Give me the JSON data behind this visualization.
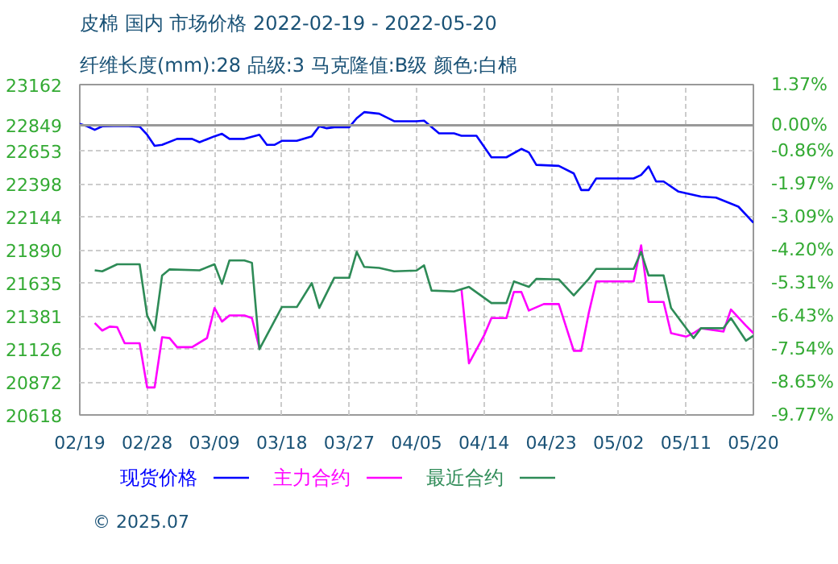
{
  "chart_data": {
    "type": "line",
    "title": "皮棉 国内 市场价格 2022-02-19 - 2022-05-20",
    "subtitle": "纤维长度(mm):28 品级:3 马克隆值:B级 颜色:白棉",
    "xlim": [
      "2022-02-19",
      "2022-05-20"
    ],
    "xticks": [
      {
        "value": "2022-02-19",
        "label": "02/19"
      },
      {
        "value": "2022-02-28",
        "label": "02/28"
      },
      {
        "value": "2022-03-09",
        "label": "03/09"
      },
      {
        "value": "2022-03-18",
        "label": "03/18"
      },
      {
        "value": "2022-03-27",
        "label": "03/27"
      },
      {
        "value": "2022-04-05",
        "label": "04/05"
      },
      {
        "value": "2022-04-14",
        "label": "04/14"
      },
      {
        "value": "2022-04-23",
        "label": "04/23"
      },
      {
        "value": "2022-05-02",
        "label": "05/02"
      },
      {
        "value": "2022-05-11",
        "label": "05/11"
      },
      {
        "value": "2022-05-20",
        "label": "05/20"
      }
    ],
    "ylim": [
      20618,
      23162
    ],
    "yticks": [
      20618,
      20872,
      21126,
      21381,
      21635,
      21890,
      22144,
      22398,
      22653,
      22849,
      23162
    ],
    "y2lim": [
      -9.77,
      1.37
    ],
    "y2ticks": [
      {
        "value": -9.77,
        "label": "-9.77%"
      },
      {
        "value": -8.65,
        "label": "-8.65%"
      },
      {
        "value": -7.54,
        "label": "-7.54%"
      },
      {
        "value": -6.43,
        "label": "-6.43%"
      },
      {
        "value": -5.31,
        "label": "-5.31%"
      },
      {
        "value": -4.2,
        "label": "-4.20%"
      },
      {
        "value": -3.09,
        "label": "-3.09%"
      },
      {
        "value": -1.97,
        "label": "-1.97%"
      },
      {
        "value": -0.86,
        "label": "-0.86%"
      },
      {
        "value": 0,
        "label": "0.00%"
      },
      {
        "value": 1.37,
        "label": "1.37%"
      }
    ],
    "ref_lines": [
      {
        "axis": "y2",
        "value": 0,
        "color": "#999999",
        "line_style": "solid"
      }
    ],
    "grid": true,
    "legend": "bottom",
    "line_style": "solid",
    "annotations": [
      "© 2025.07"
    ],
    "series": [
      {
        "name": "现货价格",
        "color": "#0000ff",
        "x": [
          "2022-02-19",
          "2022-02-20",
          "2022-02-21",
          "2022-02-22",
          "2022-02-25",
          "2022-02-27",
          "2022-02-28",
          "2022-03-01",
          "2022-03-02",
          "2022-03-04",
          "2022-03-06",
          "2022-03-07",
          "2022-03-09",
          "2022-03-10",
          "2022-03-11",
          "2022-03-13",
          "2022-03-15",
          "2022-03-16",
          "2022-03-17",
          "2022-03-18",
          "2022-03-20",
          "2022-03-22",
          "2022-03-23",
          "2022-03-24",
          "2022-03-25",
          "2022-03-27",
          "2022-03-28",
          "2022-03-29",
          "2022-03-31",
          "2022-04-02",
          "2022-04-05",
          "2022-04-06",
          "2022-04-08",
          "2022-04-10",
          "2022-04-11",
          "2022-04-13",
          "2022-04-15",
          "2022-04-17",
          "2022-04-19",
          "2022-04-20",
          "2022-04-21",
          "2022-04-24",
          "2022-04-26",
          "2022-04-27",
          "2022-04-28",
          "2022-04-29",
          "2022-05-04",
          "2022-05-05",
          "2022-05-06",
          "2022-05-07",
          "2022-05-08",
          "2022-05-10",
          "2022-05-13",
          "2022-05-15",
          "2022-05-18",
          "2022-05-20"
        ],
        "values": [
          22860,
          22841,
          22814,
          22841,
          22845,
          22838,
          22776,
          22690,
          22698,
          22744,
          22744,
          22718,
          22764,
          22783,
          22744,
          22744,
          22776,
          22698,
          22698,
          22729,
          22729,
          22764,
          22841,
          22826,
          22834,
          22834,
          22903,
          22950,
          22938,
          22880,
          22880,
          22884,
          22787,
          22787,
          22768,
          22768,
          22602,
          22602,
          22667,
          22640,
          22544,
          22536,
          22478,
          22350,
          22350,
          22439,
          22439,
          22466,
          22532,
          22416,
          22416,
          22338,
          22300,
          22292,
          22222,
          22098
        ]
      },
      {
        "name": "主力合约",
        "color": "#ff00ff",
        "x": [
          "2022-02-21",
          "2022-02-22",
          "2022-02-23",
          "2022-02-24",
          "2022-02-25",
          "2022-02-27",
          "2022-02-28",
          "2022-03-01",
          "2022-03-02",
          "2022-03-03",
          "2022-03-04",
          "2022-03-06",
          "2022-03-08",
          "2022-03-09",
          "2022-03-10",
          "2022-03-11",
          "2022-03-13",
          "2022-03-14",
          "2022-03-15",
          "2022-03-28",
          "2022-04-11",
          "2022-04-12",
          "2022-04-14",
          "2022-04-15",
          "2022-04-17",
          "2022-04-18",
          "2022-04-19",
          "2022-04-20",
          "2022-04-22",
          "2022-04-24",
          "2022-04-26",
          "2022-04-27",
          "2022-04-28",
          "2022-04-29",
          "2022-05-04",
          "2022-05-05",
          "2022-05-06",
          "2022-05-08",
          "2022-05-09",
          "2022-05-11",
          "2022-05-12",
          "2022-05-13",
          "2022-05-16",
          "2022-05-17",
          "2022-05-19",
          "2022-05-20"
        ],
        "values": [
          21326,
          21268,
          21298,
          21294,
          21170,
          21170,
          20830,
          20830,
          21217,
          21210,
          21140,
          21140,
          21210,
          21442,
          21337,
          21384,
          21384,
          21364,
          21132,
          null,
          21584,
          21016,
          21228,
          21364,
          21364,
          21565,
          21565,
          21422,
          21472,
          21472,
          21112,
          21112,
          21402,
          21646,
          21646,
          21924,
          21488,
          21488,
          21248,
          21221,
          21248,
          21286,
          21260,
          21430,
          21306,
          21248
        ]
      },
      {
        "name": "最近合约",
        "color": "#2e8b57",
        "x": [
          "2022-02-21",
          "2022-02-22",
          "2022-02-24",
          "2022-02-27",
          "2022-02-28",
          "2022-03-01",
          "2022-03-02",
          "2022-03-03",
          "2022-03-07",
          "2022-03-09",
          "2022-03-10",
          "2022-03-11",
          "2022-03-13",
          "2022-03-14",
          "2022-03-15",
          "2022-03-18",
          "2022-03-20",
          "2022-03-22",
          "2022-03-23",
          "2022-03-25",
          "2022-03-27",
          "2022-03-28",
          "2022-03-29",
          "2022-03-31",
          "2022-04-02",
          "2022-04-05",
          "2022-04-06",
          "2022-04-07",
          "2022-04-10",
          "2022-04-12",
          "2022-04-15",
          "2022-04-17",
          "2022-04-18",
          "2022-04-20",
          "2022-04-21",
          "2022-04-24",
          "2022-04-26",
          "2022-04-28",
          "2022-04-29",
          "2022-05-04",
          "2022-05-05",
          "2022-05-06",
          "2022-05-08",
          "2022-05-09",
          "2022-05-12",
          "2022-05-13",
          "2022-05-16",
          "2022-05-17",
          "2022-05-19",
          "2022-05-20"
        ],
        "values": [
          21732,
          21724,
          21778,
          21778,
          21384,
          21268,
          21692,
          21739,
          21732,
          21778,
          21627,
          21808,
          21808,
          21790,
          21124,
          21449,
          21449,
          21634,
          21442,
          21674,
          21674,
          21874,
          21758,
          21750,
          21724,
          21730,
          21770,
          21576,
          21569,
          21604,
          21480,
          21480,
          21646,
          21604,
          21666,
          21662,
          21538,
          21666,
          21743,
          21743,
          21874,
          21692,
          21692,
          21442,
          21210,
          21286,
          21286,
          21364,
          21190,
          21228
        ]
      }
    ]
  }
}
